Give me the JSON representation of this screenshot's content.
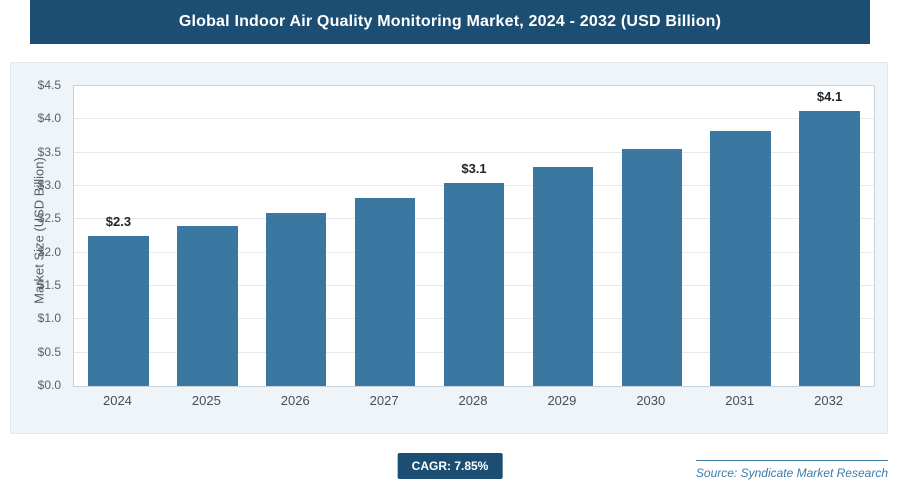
{
  "header": {
    "title": "Global Indoor Air Quality Monitoring Market, 2024 - 2032 (USD Billion)"
  },
  "chart_data": {
    "type": "bar",
    "title": "Global Indoor Air Quality Monitoring Market, 2024 - 2032 (USD Billion)",
    "categories": [
      "2024",
      "2025",
      "2026",
      "2027",
      "2028",
      "2029",
      "2030",
      "2031",
      "2032"
    ],
    "values": [
      2.25,
      2.4,
      2.6,
      2.82,
      3.05,
      3.28,
      3.55,
      3.82,
      4.12
    ],
    "bar_labels": [
      "$2.3",
      "",
      "",
      "",
      "$3.1",
      "",
      "",
      "",
      "$4.1"
    ],
    "xlabel": "",
    "ylabel": "Market Size (USD Billion)",
    "ylim": [
      0,
      4.5
    ],
    "ytick_step": 0.5,
    "ytick_labels": [
      "$0.0",
      "$0.5",
      "$1.0",
      "$1.5",
      "$2.0",
      "$2.5",
      "$3.0",
      "$3.5",
      "$4.0",
      "$4.5"
    ],
    "grid": true,
    "legend": "none",
    "bar_color": "#3a78a2"
  },
  "footer": {
    "cagr_label": "CAGR: 7.85%",
    "source_label": "Source: Syndicate Market Research"
  },
  "colors": {
    "header_bg": "#1c4e74",
    "panel_bg": "#eff4f8",
    "bar": "#3a78a2",
    "badge_bg": "#1c4e74",
    "source_text": "#3e7ca8"
  }
}
